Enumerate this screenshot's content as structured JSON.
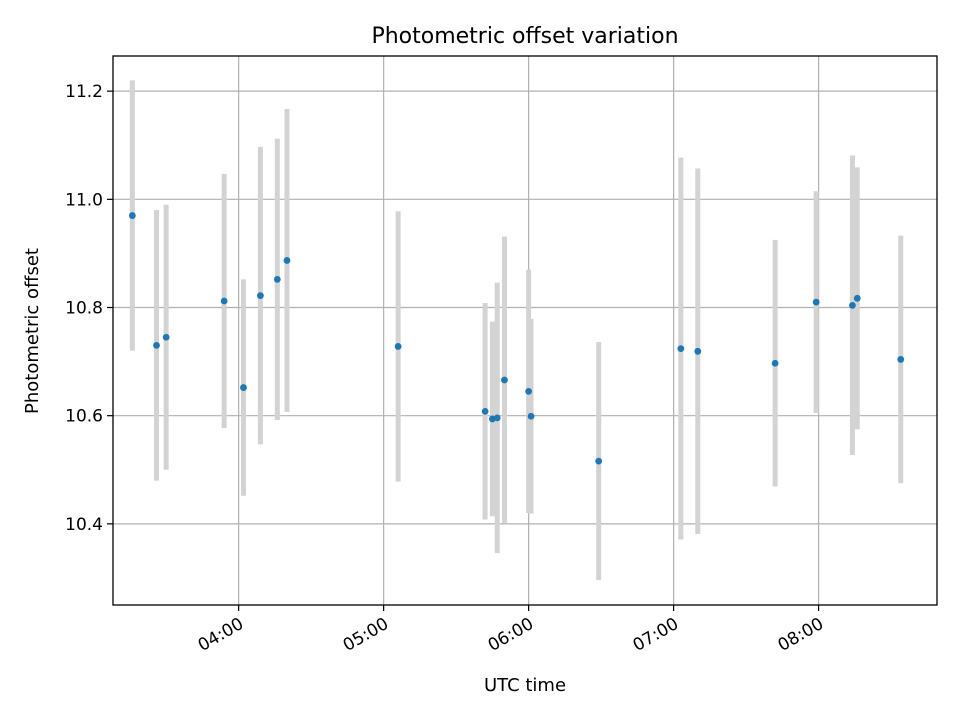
{
  "chart_data": {
    "type": "scatter",
    "title": "Photometric offset variation",
    "xlabel": "UTC time",
    "ylabel": "Photometric offset",
    "x_unit": "HH:MM",
    "xlim": [
      "03:08",
      "08:49"
    ],
    "ylim": [
      10.25,
      11.265
    ],
    "x_ticks": [
      "04:00",
      "05:00",
      "06:00",
      "07:00",
      "08:00"
    ],
    "y_ticks": [
      10.4,
      10.6,
      10.8,
      11.0,
      11.2
    ],
    "y_tick_labels": [
      "10.4",
      "10.6",
      "10.8",
      "11.0",
      "11.2"
    ],
    "grid": true,
    "marker_color": "#1f77b4",
    "errorbar_color": "#d3d3d3",
    "points": [
      {
        "x": "03:16",
        "y": 10.97,
        "yerr": 0.25
      },
      {
        "x": "03:26",
        "y": 10.73,
        "yerr": 0.25
      },
      {
        "x": "03:30",
        "y": 10.745,
        "yerr": 0.245
      },
      {
        "x": "03:54",
        "y": 10.812,
        "yerr": 0.235
      },
      {
        "x": "04:02",
        "y": 10.652,
        "yerr": 0.2
      },
      {
        "x": "04:09",
        "y": 10.822,
        "yerr": 0.275
      },
      {
        "x": "04:16",
        "y": 10.852,
        "yerr": 0.26
      },
      {
        "x": "04:20",
        "y": 10.887,
        "yerr": 0.28
      },
      {
        "x": "05:06",
        "y": 10.728,
        "yerr": 0.25
      },
      {
        "x": "05:42",
        "y": 10.608,
        "yerr": 0.2
      },
      {
        "x": "05:45",
        "y": 10.594,
        "yerr": 0.18
      },
      {
        "x": "05:47",
        "y": 10.596,
        "yerr": 0.25
      },
      {
        "x": "05:50",
        "y": 10.666,
        "yerr": 0.265
      },
      {
        "x": "06:00",
        "y": 10.645,
        "yerr": 0.225
      },
      {
        "x": "06:01",
        "y": 10.599,
        "yerr": 0.18
      },
      {
        "x": "06:29",
        "y": 10.516,
        "yerr": 0.22
      },
      {
        "x": "07:03",
        "y": 10.724,
        "yerr": 0.353
      },
      {
        "x": "07:10",
        "y": 10.719,
        "yerr": 0.338
      },
      {
        "x": "07:42",
        "y": 10.697,
        "yerr": 0.228
      },
      {
        "x": "07:59",
        "y": 10.81,
        "yerr": 0.205
      },
      {
        "x": "08:14",
        "y": 10.804,
        "yerr": 0.277
      },
      {
        "x": "08:16",
        "y": 10.817,
        "yerr": 0.242
      },
      {
        "x": "08:34",
        "y": 10.704,
        "yerr": 0.229
      }
    ]
  }
}
